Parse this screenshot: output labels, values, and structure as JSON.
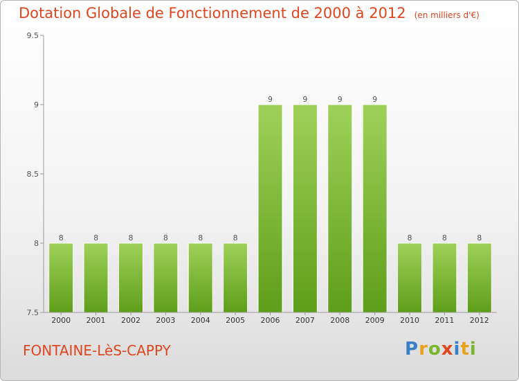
{
  "title": "Dotation Globale de Fonctionnement de 2000 à 2012",
  "unit_note": "(en milliers d'€)",
  "commune": "FONTAINE-LèS-CAPPY",
  "logo": {
    "letters": [
      "P",
      "r",
      "o",
      "x",
      "i",
      "t",
      "i"
    ],
    "colors": [
      "#3a7fc8",
      "#e8a21c",
      "#7ab72e",
      "#e0451f",
      "#3a7fc8",
      "#e8a21c",
      "#7ab72e"
    ]
  },
  "colors": {
    "accent": "#e0451f",
    "bar_top": "#9fd15a",
    "bar_bottom": "#5e9e1a"
  },
  "chart_data": {
    "type": "bar",
    "title": "Dotation Globale de Fonctionnement de 2000 à 2012",
    "xlabel": "",
    "ylabel": "",
    "categories": [
      "2000",
      "2001",
      "2002",
      "2003",
      "2004",
      "2005",
      "2006",
      "2007",
      "2008",
      "2009",
      "2010",
      "2011",
      "2012"
    ],
    "values": [
      8,
      8,
      8,
      8,
      8,
      8,
      9,
      9,
      9,
      9,
      8,
      8,
      8
    ],
    "ylim": [
      7.5,
      9.5
    ],
    "yticks": [
      "7.5",
      "8",
      "8.5",
      "9",
      "9.5"
    ],
    "grid": false
  }
}
